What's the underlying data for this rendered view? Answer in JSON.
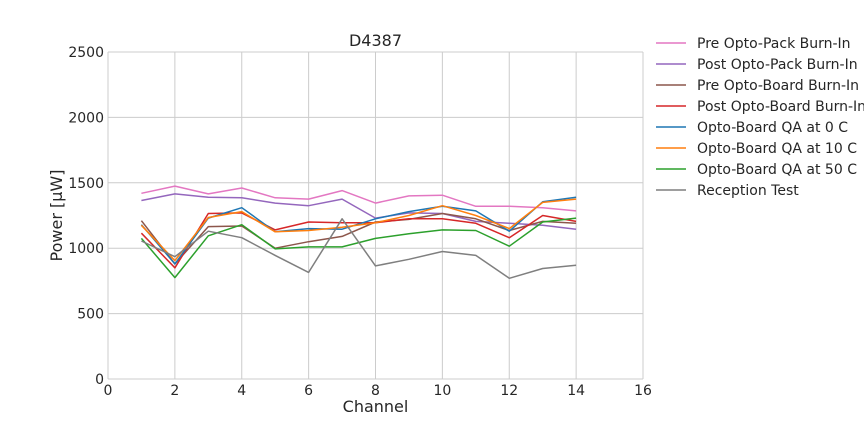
{
  "chart_data": {
    "type": "line",
    "title": "D4387",
    "xlabel": "Channel",
    "ylabel": "Power [μW]",
    "xlim": [
      0,
      16
    ],
    "ylim": [
      0,
      2500
    ],
    "xticks": [
      0,
      2,
      4,
      6,
      8,
      10,
      12,
      14,
      16
    ],
    "yticks": [
      0,
      500,
      1000,
      1500,
      2000,
      2500
    ],
    "grid": true,
    "legend_position": "outside-right",
    "x": [
      1,
      2,
      3,
      4,
      5,
      6,
      7,
      8,
      9,
      10,
      11,
      12,
      13,
      14
    ],
    "series": [
      {
        "name": "Pre Opto-Pack Burn-In",
        "color": "#e377c2",
        "values": [
          1420,
          1475,
          1415,
          1460,
          1385,
          1375,
          1440,
          1345,
          1400,
          1405,
          1320,
          1320,
          1310,
          1285
        ]
      },
      {
        "name": "Post Opto-Pack Burn-In",
        "color": "#9467bd",
        "values": [
          1365,
          1415,
          1390,
          1385,
          1345,
          1325,
          1375,
          1230,
          1270,
          1265,
          1205,
          1190,
          1175,
          1145
        ]
      },
      {
        "name": "Pre Opto-Board Burn-In",
        "color": "#8c564b",
        "values": [
          1210,
          880,
          1165,
          1170,
          1000,
          1050,
          1090,
          1200,
          1220,
          1265,
          1225,
          1135,
          1205,
          1190
        ]
      },
      {
        "name": "Post Opto-Board Burn-In",
        "color": "#d62728",
        "values": [
          1115,
          850,
          1265,
          1270,
          1140,
          1200,
          1195,
          1195,
          1225,
          1225,
          1190,
          1080,
          1250,
          1205
        ]
      },
      {
        "name": "Opto-Board QA at 0 C",
        "color": "#1f77b4",
        "values": [
          1180,
          880,
          1230,
          1310,
          1125,
          1150,
          1145,
          1225,
          1280,
          1320,
          1285,
          1130,
          1355,
          1390
        ]
      },
      {
        "name": "Opto-Board QA at 10 C",
        "color": "#ff7f0e",
        "values": [
          1175,
          905,
          1235,
          1280,
          1125,
          1135,
          1160,
          1195,
          1250,
          1325,
          1250,
          1150,
          1350,
          1375
        ]
      },
      {
        "name": "Opto-Board QA at 50 C",
        "color": "#2ca02c",
        "values": [
          1075,
          775,
          1095,
          1180,
          995,
          1010,
          1010,
          1075,
          1110,
          1140,
          1135,
          1015,
          1200,
          1230
        ]
      },
      {
        "name": "Reception Test",
        "color": "#7f7f7f",
        "values": [
          1055,
          935,
          1130,
          1080,
          945,
          815,
          1225,
          865,
          915,
          975,
          945,
          770,
          845,
          870
        ]
      }
    ]
  }
}
